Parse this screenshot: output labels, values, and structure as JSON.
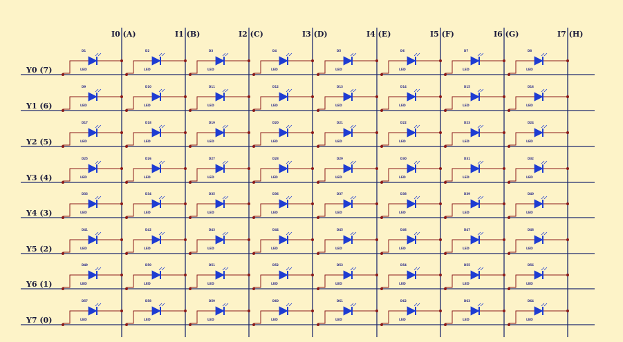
{
  "column_labels": [
    "I0 (A)",
    "I1 (B)",
    "I2 (C)",
    "I3 (D)",
    "I4 (E)",
    "I5 (F)",
    "I6 (G)",
    "I7 (H)"
  ],
  "row_labels": [
    "Y0 (7)",
    "Y1 (6)",
    "Y2 (5)",
    "Y3 (4)",
    "Y4 (3)",
    "Y5 (2)",
    "Y6 (1)",
    "Y7 (0)"
  ],
  "led_type_label": "LED",
  "led_designators": [
    [
      "D1",
      "D2",
      "D3",
      "D4",
      "D5",
      "D6",
      "D7",
      "D8"
    ],
    [
      "D9",
      "D10",
      "D11",
      "D12",
      "D13",
      "D14",
      "D15",
      "D16"
    ],
    [
      "D17",
      "D18",
      "D19",
      "D20",
      "D21",
      "D22",
      "D23",
      "D24"
    ],
    [
      "D25",
      "D26",
      "D27",
      "D28",
      "D29",
      "D30",
      "D31",
      "D32"
    ],
    [
      "D33",
      "D34",
      "D35",
      "D36",
      "D37",
      "D38",
      "D39",
      "D40"
    ],
    [
      "D41",
      "D42",
      "D43",
      "D44",
      "D45",
      "D46",
      "D47",
      "D48"
    ],
    [
      "D49",
      "D50",
      "D51",
      "D52",
      "D53",
      "D54",
      "D55",
      "D56"
    ],
    [
      "D57",
      "D58",
      "D59",
      "D60",
      "D61",
      "D62",
      "D63",
      "D64"
    ]
  ],
  "colors": {
    "background": "#fdf3c8",
    "grid_wire": "#1f2a6e",
    "component_wire": "#8b1a1a",
    "led_symbol": "#1e3cd2",
    "junction": "#8b1a1a"
  }
}
